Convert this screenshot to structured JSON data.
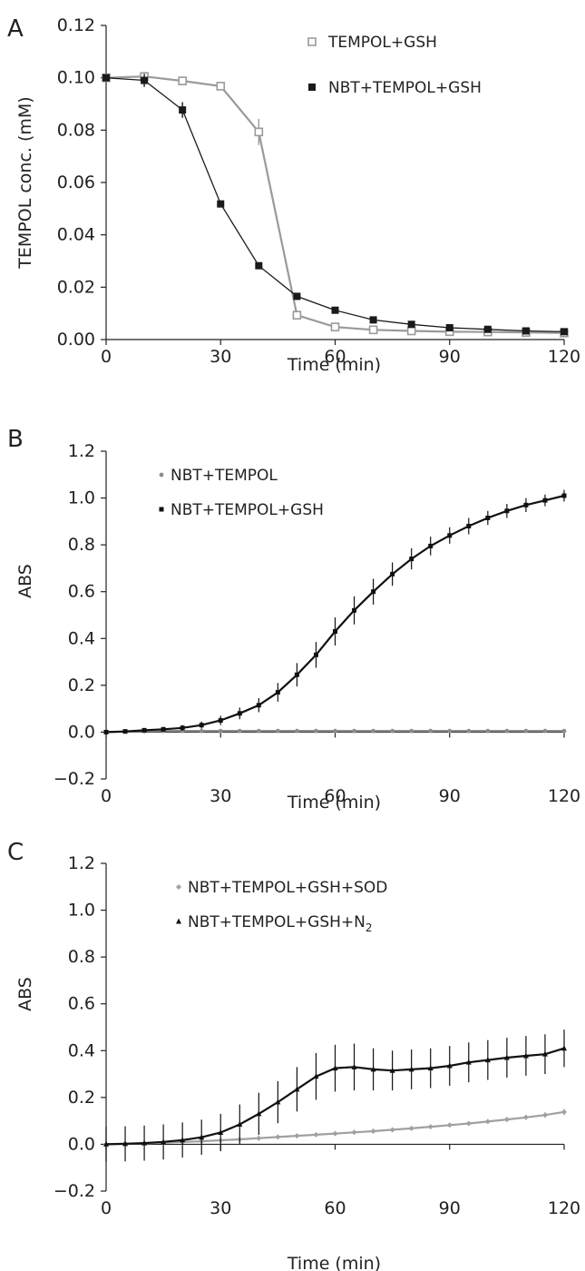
{
  "chart_data": [
    {
      "panel": "A",
      "type": "line",
      "xlabel": "Time (min)",
      "ylabel": "TEMPOL conc. (mM)",
      "xlim": [
        0,
        120
      ],
      "ylim": [
        0,
        0.12
      ],
      "xticks": [
        0,
        30,
        60,
        90,
        120
      ],
      "yticks": [
        "0.00",
        "0.02",
        "0.04",
        "0.06",
        "0.08",
        "0.10",
        "0.12"
      ],
      "grid": false,
      "legend_position": "top-right",
      "x": [
        0,
        10,
        20,
        30,
        40,
        50,
        60,
        70,
        80,
        90,
        100,
        110,
        120
      ],
      "series": [
        {
          "name": "TEMPOL+GSH",
          "marker": "open-square",
          "color": "#9a9a9a",
          "values": [
            0.1,
            0.1005,
            0.0988,
            0.0968,
            0.0793,
            0.0093,
            0.0048,
            0.0037,
            0.0033,
            0.003,
            0.0029,
            0.0027,
            0.0025
          ],
          "errors": [
            0,
            0.0008,
            0.0005,
            0.0006,
            0.005,
            0.0012,
            0.0006,
            0.0004,
            0.0003,
            0.0003,
            0.0003,
            0.0003,
            0.0003
          ]
        },
        {
          "name": "NBT+TEMPOL+GSH",
          "marker": "filled-square",
          "color": "#1a1a1a",
          "values": [
            0.1,
            0.099,
            0.0877,
            0.0518,
            0.0282,
            0.0165,
            0.0112,
            0.0075,
            0.0058,
            0.0045,
            0.0039,
            0.0033,
            0.003
          ],
          "errors": [
            0,
            0.0025,
            0.003,
            0.0008,
            0.0008,
            0.0006,
            0.0005,
            0.0004,
            0.0003,
            0.0003,
            0.0003,
            0.0003,
            0.0003
          ]
        }
      ]
    },
    {
      "panel": "B",
      "type": "line",
      "xlabel": "Time (min)",
      "ylabel": "ABS",
      "xlim": [
        0,
        120
      ],
      "ylim": [
        -0.2,
        1.2
      ],
      "xticks": [
        0,
        30,
        60,
        90,
        120
      ],
      "yticks": [
        "−0.2",
        "0.0",
        "0.2",
        "0.4",
        "0.6",
        "0.8",
        "1.0",
        "1.2"
      ],
      "grid": false,
      "legend_position": "top-left",
      "x": [
        0,
        5,
        10,
        15,
        20,
        25,
        30,
        35,
        40,
        45,
        50,
        55,
        60,
        65,
        70,
        75,
        80,
        85,
        90,
        95,
        100,
        105,
        110,
        115,
        120
      ],
      "series": [
        {
          "name": "NBT+TEMPOL",
          "marker": "small-dot",
          "color": "#8c8c8c",
          "values": [
            0.0,
            0.002,
            0.004,
            0.005,
            0.005,
            0.005,
            0.005,
            0.005,
            0.005,
            0.005,
            0.005,
            0.005,
            0.005,
            0.005,
            0.005,
            0.005,
            0.005,
            0.005,
            0.005,
            0.005,
            0.005,
            0.005,
            0.005,
            0.005,
            0.005
          ],
          "errors": [
            0.003,
            0.003,
            0.003,
            0.003,
            0.003,
            0.003,
            0.003,
            0.003,
            0.003,
            0.003,
            0.003,
            0.003,
            0.003,
            0.003,
            0.003,
            0.003,
            0.003,
            0.003,
            0.003,
            0.003,
            0.003,
            0.003,
            0.003,
            0.003,
            0.003
          ]
        },
        {
          "name": "NBT+TEMPOL+GSH",
          "marker": "small-square",
          "color": "#111111",
          "values": [
            0.0,
            0.003,
            0.008,
            0.012,
            0.018,
            0.03,
            0.05,
            0.08,
            0.115,
            0.17,
            0.245,
            0.33,
            0.43,
            0.52,
            0.6,
            0.675,
            0.74,
            0.795,
            0.84,
            0.88,
            0.915,
            0.945,
            0.97,
            0.99,
            1.01
          ],
          "errors": [
            0.004,
            0.006,
            0.008,
            0.01,
            0.012,
            0.015,
            0.02,
            0.025,
            0.03,
            0.04,
            0.05,
            0.055,
            0.06,
            0.06,
            0.055,
            0.05,
            0.045,
            0.04,
            0.035,
            0.035,
            0.03,
            0.03,
            0.03,
            0.025,
            0.025
          ]
        }
      ]
    },
    {
      "panel": "C",
      "type": "line",
      "xlabel": "Time (min)",
      "ylabel": "ABS",
      "xlim": [
        0,
        120
      ],
      "ylim": [
        -0.2,
        1.2
      ],
      "xticks": [
        0,
        30,
        60,
        90,
        120
      ],
      "yticks": [
        "−0.2",
        "0.0",
        "0.2",
        "0.4",
        "0.6",
        "0.8",
        "1.0",
        "1.2"
      ],
      "grid": false,
      "legend_position": "top-left",
      "x": [
        0,
        5,
        10,
        15,
        20,
        25,
        30,
        35,
        40,
        45,
        50,
        55,
        60,
        65,
        70,
        75,
        80,
        85,
        90,
        95,
        100,
        105,
        110,
        115,
        120
      ],
      "series": [
        {
          "name": "NBT+TEMPOL+GSH+SOD",
          "marker": "small-diamond",
          "color": "#a0a0a0",
          "values": [
            0.0,
            0.002,
            0.004,
            0.007,
            0.01,
            0.013,
            0.017,
            0.021,
            0.026,
            0.031,
            0.036,
            0.041,
            0.046,
            0.051,
            0.056,
            0.062,
            0.068,
            0.075,
            0.082,
            0.089,
            0.097,
            0.106,
            0.115,
            0.125,
            0.138
          ],
          "errors": [
            0.003,
            0.003,
            0.004,
            0.004,
            0.004,
            0.005,
            0.005,
            0.005,
            0.006,
            0.006,
            0.006,
            0.007,
            0.007,
            0.007,
            0.008,
            0.008,
            0.008,
            0.009,
            0.009,
            0.009,
            0.01,
            0.01,
            0.011,
            0.012,
            0.013
          ]
        },
        {
          "name": "NBT+TEMPOL+GSH+N",
          "name_subscript": "2",
          "marker": "small-triangle",
          "color": "#111111",
          "values": [
            0.0,
            0.002,
            0.005,
            0.01,
            0.018,
            0.03,
            0.05,
            0.085,
            0.13,
            0.18,
            0.235,
            0.29,
            0.325,
            0.33,
            0.32,
            0.315,
            0.32,
            0.325,
            0.335,
            0.35,
            0.36,
            0.37,
            0.378,
            0.385,
            0.41
          ],
          "errors": [
            0.075,
            0.075,
            0.075,
            0.075,
            0.075,
            0.075,
            0.08,
            0.085,
            0.09,
            0.09,
            0.095,
            0.1,
            0.1,
            0.1,
            0.09,
            0.085,
            0.085,
            0.085,
            0.085,
            0.085,
            0.085,
            0.085,
            0.085,
            0.085,
            0.08
          ]
        }
      ]
    }
  ]
}
